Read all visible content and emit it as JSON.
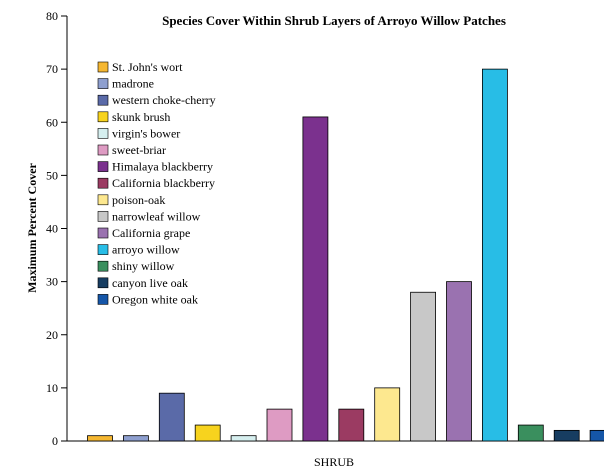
{
  "chart_data": {
    "type": "bar",
    "title": "Species Cover Within Shrub Layers of Arroyo Willow Patches",
    "xlabel": "SHRUB",
    "ylabel": "Maximum Percent Cover",
    "ylim": [
      0,
      80
    ],
    "yticks": [
      0,
      10,
      20,
      30,
      40,
      50,
      60,
      70,
      80
    ],
    "grid": false,
    "legend_position": "upper-left",
    "categories": [
      "St. John's wort",
      "madrone",
      "western choke-cherry",
      "skunk brush",
      "virgin's bower",
      "sweet-briar",
      "Himalaya blackberry",
      "California blackberry",
      "poison-oak",
      "narrowleaf willow",
      "California grape",
      "arroyo willow",
      "shiny willow",
      "canyon live oak",
      "Oregon white oak"
    ],
    "values": [
      1,
      1,
      9,
      3,
      1,
      6,
      61,
      6,
      10,
      28,
      30,
      70,
      3,
      2,
      2
    ],
    "colors": [
      "#f5b731",
      "#8e9fcf",
      "#5a6aa8",
      "#f7d31e",
      "#d6efef",
      "#de9bc3",
      "#7b318e",
      "#9b3b62",
      "#fde88f",
      "#c8c8c8",
      "#9a72b0",
      "#28bde6",
      "#3a8f5e",
      "#173d61",
      "#1556a8"
    ]
  }
}
